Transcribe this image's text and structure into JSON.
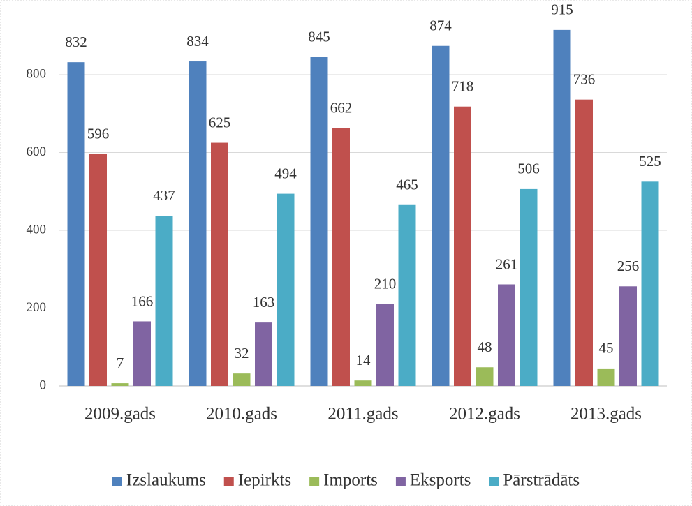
{
  "chart_data": {
    "type": "bar",
    "categories": [
      "2009.gads",
      "2010.gads",
      "2011.gads",
      "2012.gads",
      "2013.gads"
    ],
    "series": [
      {
        "name": "Izslaukums",
        "color": "#4f81bd",
        "values": [
          832,
          834,
          845,
          874,
          915
        ]
      },
      {
        "name": "Iepirkts",
        "color": "#c0504d",
        "values": [
          596,
          625,
          662,
          718,
          736
        ]
      },
      {
        "name": "Imports",
        "color": "#9bbb59",
        "values": [
          7,
          32,
          14,
          48,
          45
        ]
      },
      {
        "name": "Eksports",
        "color": "#8064a2",
        "values": [
          166,
          163,
          210,
          261,
          256
        ]
      },
      {
        "name": "Pārstrādāts",
        "color": "#4bacc6",
        "values": [
          437,
          494,
          465,
          506,
          525
        ]
      }
    ],
    "ylim": [
      0,
      950
    ],
    "yticks": [
      0,
      200,
      400,
      600,
      800
    ],
    "grid": true,
    "legend": "bottom"
  }
}
